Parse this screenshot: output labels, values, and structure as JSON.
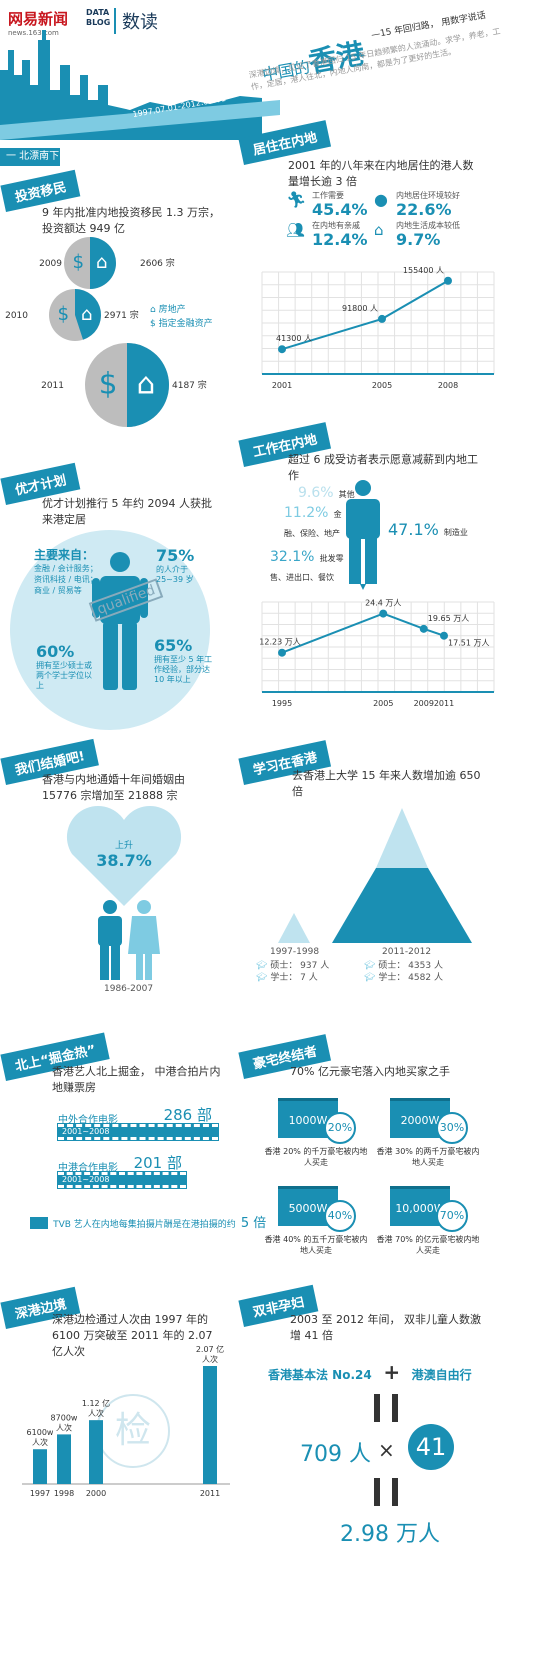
{
  "header": {
    "logo_left": "网易新闻",
    "logo_left_sub": "news.163.com",
    "logo_databox_line1": "DATA",
    "logo_databox_line2": "BLOG",
    "logo_right": "数读",
    "title_prefix": "中国的",
    "title_main": "香港",
    "subtitle": "—15 年回归路， 用数字说话",
    "desc": "深港边境，见证了香港回归 15 年日趋频繁的人流涌动。求学，养老，工作，定居，港人往北，内地人向南，都是为了更好的生活。",
    "date_range": "1997.07.01-2012.07.01"
  },
  "section_beipiao": {
    "label": "一  北漂南下"
  },
  "investment": {
    "ribbon": "投资移民",
    "desc": "9 年内批准内地投资移民 1.3 万宗， 投资额达 949 亿",
    "items": [
      {
        "year": "2009",
        "count": "2606 宗",
        "property_share": 0.5
      },
      {
        "year": "2010",
        "count": "2971 宗",
        "property_share": 0.45
      },
      {
        "year": "2011",
        "count": "4187 宗",
        "property_share": 0.5
      }
    ],
    "legend_property": "房地产",
    "legend_finance": "指定金融资产"
  },
  "living": {
    "ribbon": "居住在内地",
    "desc": "2001 年的八年来在内地居住的港人数量增长逾 3 倍",
    "stats": [
      {
        "label": "工作需要",
        "value": "45.4%"
      },
      {
        "label": "内地居住环境较好",
        "value": "22.6%"
      },
      {
        "label": "在内地有亲戚",
        "value": "12.4%"
      },
      {
        "label": "内地生活成本较低",
        "value": "9.7%"
      }
    ],
    "chart_data": {
      "type": "line",
      "x": [
        "2001",
        "2005",
        "2008"
      ],
      "values": [
        41300,
        91800,
        155400
      ],
      "labels": [
        "41300 人",
        "91800 人",
        "155400 人"
      ],
      "ylim": [
        0,
        170000
      ]
    }
  },
  "working": {
    "ribbon": "工作在内地",
    "desc": "超过 6 成受访者表示愿意减薪到内地工作",
    "industries": [
      {
        "value": "9.6%",
        "label": "其他"
      },
      {
        "value": "11.2%",
        "label": "金融、保险、地产"
      },
      {
        "value": "47.1%",
        "label": "制造业"
      },
      {
        "value": "32.1%",
        "label": "批发零售、进出口、餐饮"
      }
    ],
    "chart_data": {
      "type": "line",
      "x": [
        "1995",
        "2005",
        "2009",
        "2011"
      ],
      "x_numeric": [
        1995,
        2005,
        2009,
        2011
      ],
      "values": [
        12.23,
        24.4,
        19.65,
        17.51
      ],
      "labels": [
        "12.23 万人",
        "24.4 万人",
        "19.65 万人",
        "17.51 万人"
      ],
      "ylim": [
        0,
        28
      ]
    }
  },
  "talent": {
    "ribbon": "优才计划",
    "desc": "优才计划推行 5 年约 2094 人获批来港定居",
    "source_title": "主要来自：",
    "source_detail": "金融 / 会计服务；资讯科技 / 电讯；商业 / 贸易等",
    "stamp": "qualified",
    "age_pct": "75%",
    "age_text": "的人介于 25~39 岁",
    "degree_pct": "60%",
    "degree_text": "拥有至少硕士或两个学士学位以上",
    "exp_pct": "65%",
    "exp_text": "拥有至少 5 年工作经验，部分达 10 年以上"
  },
  "marriage": {
    "ribbon": "我们结婚吧!",
    "desc": "香港与内地通婚十年间婚姻由 15776 宗增加至 21888 宗",
    "rise_label": "上升",
    "rise_value": "38.7%",
    "period": "1986-2007"
  },
  "study": {
    "ribbon": "学习在香港",
    "desc": "去香港上大学 15 年来人数增加逾 650 倍",
    "left_period": "1997-1998",
    "right_period": "2011-2012",
    "left_master": "硕士： 937 人",
    "left_bachelor": "学士： 7 人",
    "right_master": "硕士： 4353 人",
    "right_bachelor": "学士： 4582 人"
  },
  "gold": {
    "ribbon": "北上“掘金热”",
    "desc": "香港艺人北上掘金， 中港合拍片内地赚票房",
    "row1_label": "中外合作电影",
    "row1_value": "286 部",
    "row1_period": "2001~2008",
    "row2_label": "中港合作电影",
    "row2_value": "201 部",
    "row2_period": "2001~2008",
    "tvb_text": "TVB 艺人在内地每集拍摄片酬是在港拍摄的约",
    "tvb_value": "5 倍"
  },
  "luxury": {
    "ribbon": "豪宅终结者",
    "desc": "70% 亿元豪宅落入内地买家之手",
    "items": [
      {
        "price": "1000W",
        "pct": "20%",
        "text": "香港 20% 的千万豪宅被内地人买走"
      },
      {
        "price": "2000W",
        "pct": "30%",
        "text": "香港 30% 的两千万豪宅被内地人买走"
      },
      {
        "price": "5000W",
        "pct": "40%",
        "text": "香港 40% 的五千万豪宅被内地人买走"
      },
      {
        "price": "10,000W",
        "pct": "70%",
        "text": "香港 70% 的亿元豪宅被内地人买走"
      }
    ]
  },
  "border": {
    "ribbon": "深港边境",
    "desc": "深港边检通过人次由 1997 年的 6100 万突破至 2011 年的 2.07 亿人次",
    "stamp": "检",
    "chart_data": {
      "type": "bar",
      "categories": [
        "1997",
        "1998",
        "2000",
        "2011"
      ],
      "values": [
        6100,
        8700,
        11200,
        20700
      ],
      "labels": [
        "6100w 人次",
        "8700w 人次",
        "1.12 亿 人次",
        "2.07 亿 人次"
      ],
      "unit": "万人次"
    }
  },
  "double": {
    "ribbon": "双非孕妇",
    "desc": "2003 至 2012 年间， 双非儿童人数激增 41 倍",
    "law": "香港基本法 No.24",
    "plus": "+",
    "visit": "港澳自由行",
    "base": "709 人",
    "times": "×",
    "factor": "41",
    "result": "2.98 万人"
  }
}
